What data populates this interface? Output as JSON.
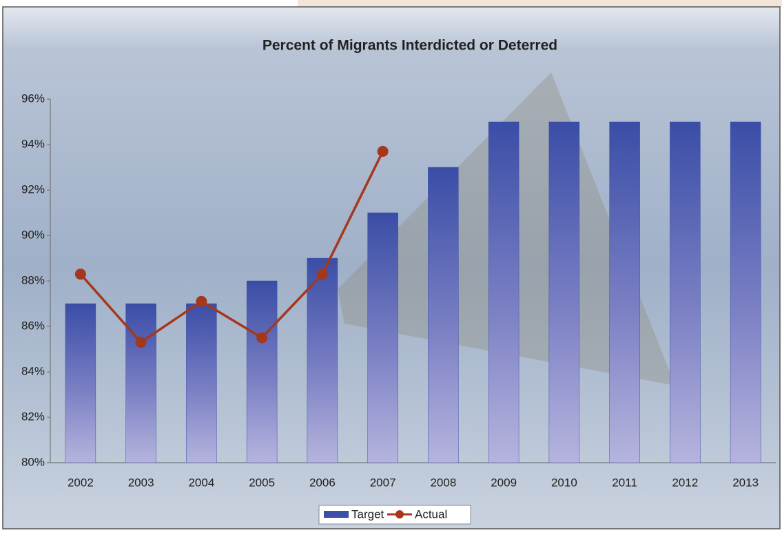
{
  "chart_data": {
    "type": "bar",
    "title": "Percent of Migrants Interdicted or Deterred",
    "categories": [
      "2002",
      "2003",
      "2004",
      "2005",
      "2006",
      "2007",
      "2008",
      "2009",
      "2010",
      "2011",
      "2012",
      "2013"
    ],
    "series": [
      {
        "name": "Target",
        "type": "bar",
        "color": "#3b4fa6",
        "values": [
          87,
          87,
          87,
          88,
          89,
          91,
          93,
          95,
          95,
          95,
          95,
          95
        ]
      },
      {
        "name": "Actual",
        "type": "line",
        "color": "#a3381c",
        "values": [
          88.3,
          85.3,
          87.1,
          85.5,
          88.3,
          93.7,
          null,
          null,
          null,
          null,
          null,
          null
        ]
      }
    ],
    "ylim": [
      80,
      96
    ],
    "yticks": [
      {
        "value": 80,
        "label": "80%"
      },
      {
        "value": 82,
        "label": "82%"
      },
      {
        "value": 84,
        "label": "84%"
      },
      {
        "value": 86,
        "label": "86%"
      },
      {
        "value": 88,
        "label": "88%"
      },
      {
        "value": 90,
        "label": "90%"
      },
      {
        "value": 92,
        "label": "92%"
      },
      {
        "value": 94,
        "label": "94%"
      },
      {
        "value": 96,
        "label": "96%"
      }
    ],
    "legend": "bottom"
  }
}
